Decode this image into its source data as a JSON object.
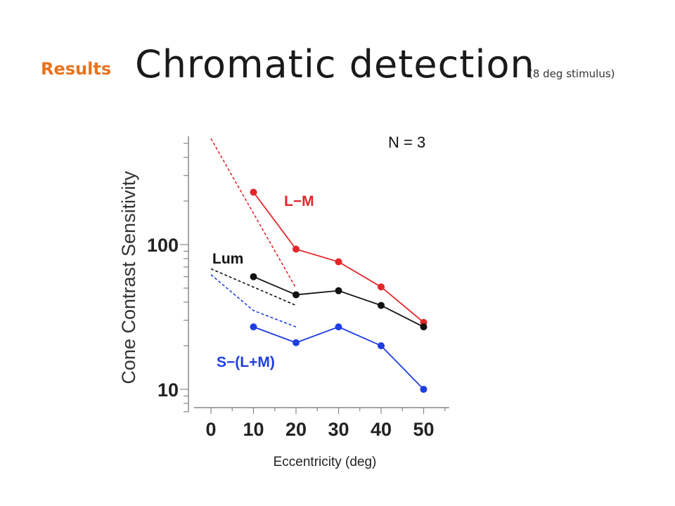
{
  "slide": {
    "section": "Results",
    "title": "Chromatic detection",
    "subtitle": "(8 deg stimulus)"
  },
  "chart_data": {
    "type": "line",
    "title": "",
    "xlabel": "Eccentricity (deg)",
    "ylabel": "Cone Contrast Sensitivity",
    "x_ticks": [
      0,
      10,
      20,
      30,
      40,
      50
    ],
    "x_tick_labels": [
      "0",
      "10",
      "20",
      "30",
      "40",
      "50"
    ],
    "y_scale": "log",
    "y_tick_labels": [
      "10",
      "100"
    ],
    "y_ticks": [
      10,
      100
    ],
    "xlim": [
      -4,
      56
    ],
    "ylim": [
      7,
      560
    ],
    "annotation": "N = 3",
    "series": [
      {
        "name": "L−M",
        "color": "#e3262a",
        "x": [
          10,
          20,
          30,
          40,
          50
        ],
        "values": [
          230,
          93,
          76,
          51,
          29
        ],
        "fit_line": {
          "x": [
            0,
            20
          ],
          "values": [
            540,
            50
          ]
        }
      },
      {
        "name": "Lum",
        "color": "#111111",
        "x": [
          10,
          20,
          30,
          40,
          50
        ],
        "values": [
          60,
          45,
          48,
          38,
          27
        ],
        "fit_line": {
          "x": [
            0,
            20
          ],
          "values": [
            68,
            38
          ]
        }
      },
      {
        "name": "S−(L+M)",
        "color": "#1f3ee0",
        "x": [
          10,
          20,
          30,
          40,
          50
        ],
        "values": [
          27,
          21,
          27,
          20,
          10
        ],
        "fit_line": {
          "x": [
            0,
            10,
            20
          ],
          "values": [
            62,
            35,
            27
          ]
        }
      }
    ]
  }
}
